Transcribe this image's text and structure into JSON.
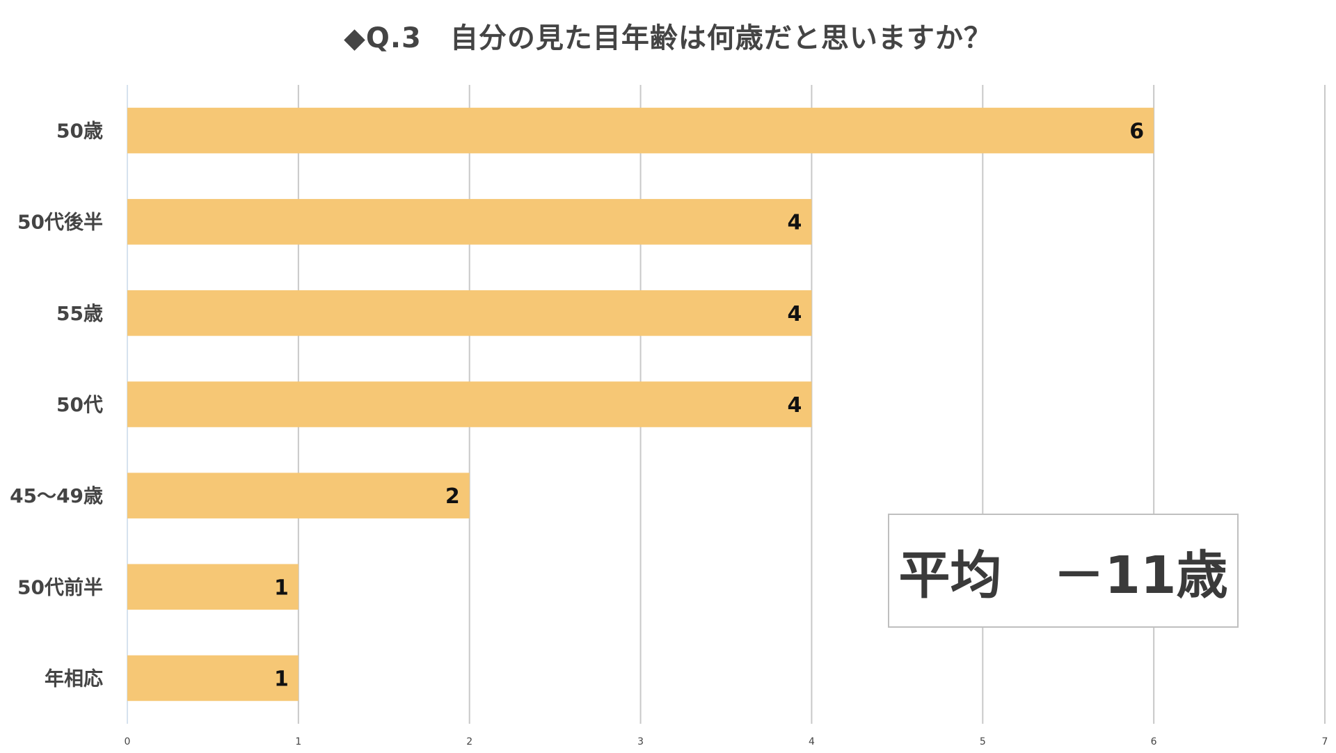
{
  "chart_data": {
    "type": "bar",
    "orientation": "horizontal",
    "title": "◆Q.3　自分の見た目年齢は何歳だと思いますか？",
    "categories": [
      "50歳",
      "50代後半",
      "55歳",
      "50代",
      "45〜49歳",
      "50代前半",
      "年相応"
    ],
    "values": [
      6,
      4,
      4,
      4,
      2,
      1,
      1
    ],
    "xlim": [
      0,
      7
    ],
    "xticks": [
      0,
      1,
      2,
      3,
      4,
      5,
      6,
      7
    ],
    "grid": "vertical",
    "legend": "none",
    "colors": {
      "bar": "#F6C775",
      "grid": "#c8c8c8",
      "label": "#444444",
      "value_label": "#111111"
    },
    "annotation": "平均　－11歳"
  }
}
